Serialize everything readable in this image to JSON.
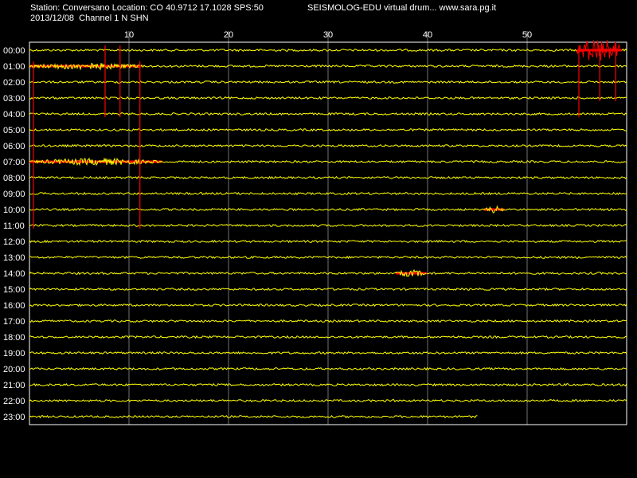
{
  "header": {
    "station_line": "Station: Conversano Location: CO 40.9712 17.1028 SPS:50",
    "title": "SEISMOLOG-EDU virtual drum... www.sara.pg.it",
    "date_line": "2013/12/08  Channel 1 N SHN"
  },
  "colors": {
    "background": "#000000",
    "trace": "#ffff00",
    "event": "#ff0000",
    "grid": "#ffffff"
  },
  "chart_data": {
    "type": "line",
    "title": "SEISMOLOG-EDU virtual drum... www.sara.pg.it",
    "xlabel": "",
    "ylabel": "",
    "xlim": [
      0,
      60
    ],
    "x_ticks": [
      "10",
      "20",
      "30",
      "40",
      "50"
    ],
    "x_tick_values": [
      10,
      20,
      30,
      40,
      50
    ],
    "grid": true,
    "rows": [
      "00:00",
      "01:00",
      "02:00",
      "03:00",
      "04:00",
      "05:00",
      "06:00",
      "07:00",
      "08:00",
      "09:00",
      "10:00",
      "11:00",
      "12:00",
      "13:00",
      "14:00",
      "15:00",
      "16:00",
      "17:00",
      "18:00",
      "19:00",
      "20:00",
      "21:00",
      "22:00",
      "23:00"
    ],
    "last_row_end_minute": 45,
    "events": [
      {
        "row": "00:00",
        "start_min": 55.0,
        "end_min": 59.5,
        "kind": "large"
      },
      {
        "row": "01:00",
        "start_min": 0.0,
        "end_min": 11.2,
        "kind": "medium"
      },
      {
        "row": "07:00",
        "start_min": 0.0,
        "end_min": 13.3,
        "kind": "medium"
      },
      {
        "row": "10:00",
        "start_min": 45.7,
        "end_min": 47.7,
        "kind": "small"
      },
      {
        "row": "14:00",
        "start_min": 36.8,
        "end_min": 39.9,
        "kind": "small"
      }
    ],
    "spikes": [
      {
        "minute": 0.4,
        "from_row": "01:00",
        "to_row": "11:00"
      },
      {
        "minute": 7.6,
        "from_row": "00:00",
        "to_row": "04:00"
      },
      {
        "minute": 9.1,
        "from_row": "00:00",
        "to_row": "04:00"
      },
      {
        "minute": 11.1,
        "from_row": "01:00",
        "to_row": "11:00"
      },
      {
        "minute": 55.2,
        "from_row": "00:00",
        "to_row": "04:00"
      },
      {
        "minute": 57.3,
        "from_row": "00:00",
        "to_row": "03:00"
      },
      {
        "minute": 58.9,
        "from_row": "00:00",
        "to_row": "03:00"
      }
    ]
  }
}
